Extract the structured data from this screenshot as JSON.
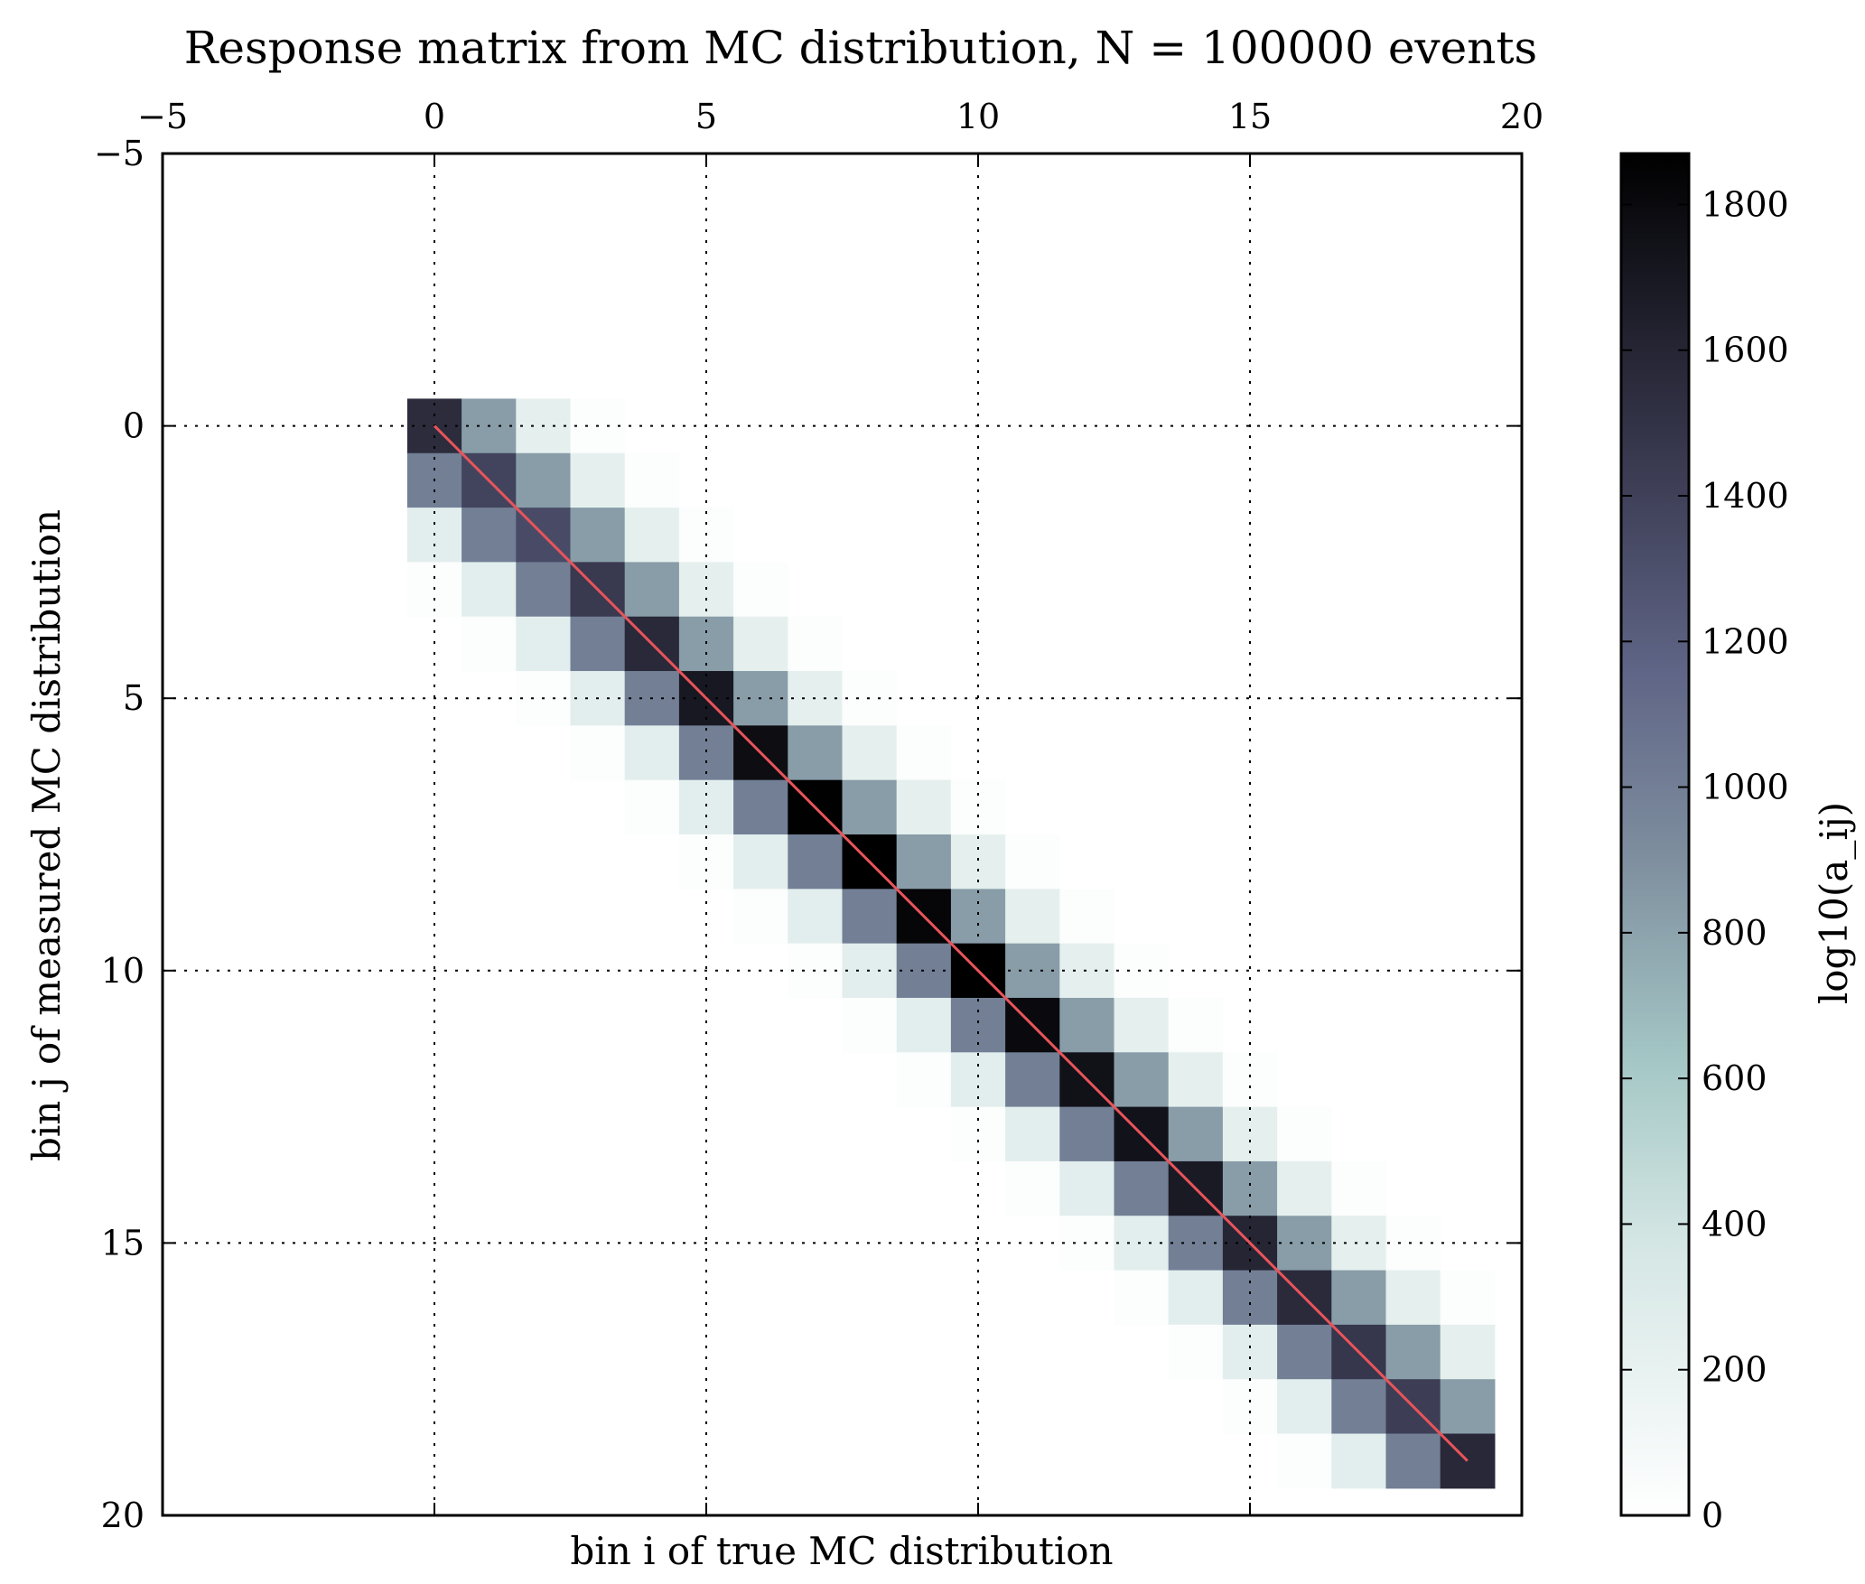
{
  "chart_data": {
    "type": "heatmap",
    "title": "Response matrix from MC distribution, N = 100000 events",
    "xlabel": "bin i of true MC distribution",
    "ylabel": "bin j of measured MC distribution",
    "colorbar_label": "log10(a_ij)",
    "xlim": [
      -5,
      20
    ],
    "ylim": [
      20,
      -5
    ],
    "x_ticks": [
      "−5",
      "0",
      "5",
      "10",
      "15",
      "20"
    ],
    "y_ticks": [
      "−5",
      "0",
      "5",
      "10",
      "15",
      "20"
    ],
    "colorbar_ticks": [
      "0",
      "200",
      "400",
      "600",
      "800",
      "1000",
      "1200",
      "1400",
      "1600",
      "1800"
    ],
    "colorbar_range": [
      0,
      1870
    ],
    "colormap": "bone_r",
    "grid": true,
    "diagonal_line": {
      "from": [
        0,
        0
      ],
      "to": [
        19,
        19
      ],
      "color": "#e8545a"
    },
    "band_values_by_offset": {
      "-3": 30,
      "-2": 230,
      "-1": 830,
      "0": 1650,
      "1": 1000,
      "2": 250,
      "3": 30
    },
    "diagonal_values": [
      1550,
      1380,
      1330,
      1450,
      1570,
      1700,
      1780,
      1860,
      1870,
      1830,
      1870,
      1800,
      1750,
      1740,
      1680,
      1600,
      1560,
      1470,
      1420,
      1580
    ]
  }
}
